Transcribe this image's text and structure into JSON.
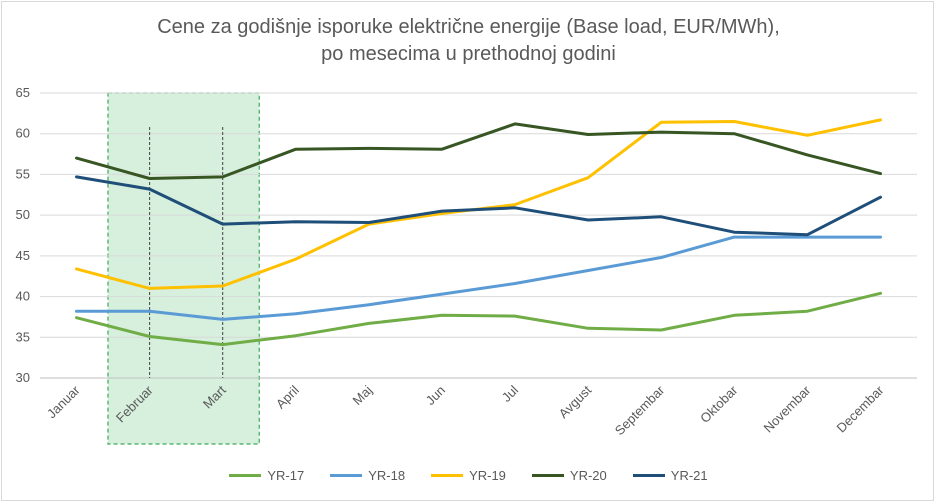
{
  "chart_data": {
    "type": "line",
    "title_line1": "Cene za godišnje isporuke električne energije (Base load, EUR/MWh),",
    "title_line2": "po mesecima u prethodnoj godini",
    "categories": [
      "Januar",
      "Februar",
      "Mart",
      "April",
      "Maj",
      "Jun",
      "Jul",
      "Avgust",
      "Septembar",
      "Oktobar",
      "Novembar",
      "Decembar"
    ],
    "yticks": [
      30,
      35,
      40,
      45,
      50,
      55,
      60,
      65
    ],
    "ylim": [
      30,
      65
    ],
    "grid": true,
    "legend_position": "bottom",
    "highlight_range": [
      "Februar",
      "Mart"
    ],
    "highlight_color": "#d6f0dd",
    "series": [
      {
        "name": "YR-17",
        "color": "#70ad47",
        "values": [
          37.4,
          35.1,
          34.1,
          35.2,
          36.7,
          37.7,
          37.6,
          36.1,
          35.9,
          37.7,
          38.2,
          40.4
        ]
      },
      {
        "name": "YR-18",
        "color": "#5b9bd5",
        "values": [
          38.2,
          38.2,
          37.2,
          37.9,
          39.0,
          40.3,
          41.6,
          43.2,
          44.8,
          47.3,
          47.3,
          47.3
        ]
      },
      {
        "name": "YR-19",
        "color": "#ffc000",
        "values": [
          43.4,
          41.0,
          41.3,
          44.6,
          48.9,
          50.2,
          51.3,
          54.6,
          61.4,
          61.5,
          59.8,
          61.7
        ]
      },
      {
        "name": "YR-20",
        "color": "#375623",
        "values": [
          57.0,
          54.5,
          54.7,
          58.1,
          58.2,
          58.1,
          61.2,
          59.9,
          60.2,
          60.0,
          57.4,
          55.1
        ]
      },
      {
        "name": "YR-21",
        "color": "#1f4e79",
        "values": [
          54.7,
          53.2,
          48.9,
          49.2,
          49.1,
          50.5,
          50.9,
          49.4,
          49.8,
          47.9,
          47.6,
          52.2
        ]
      }
    ]
  }
}
